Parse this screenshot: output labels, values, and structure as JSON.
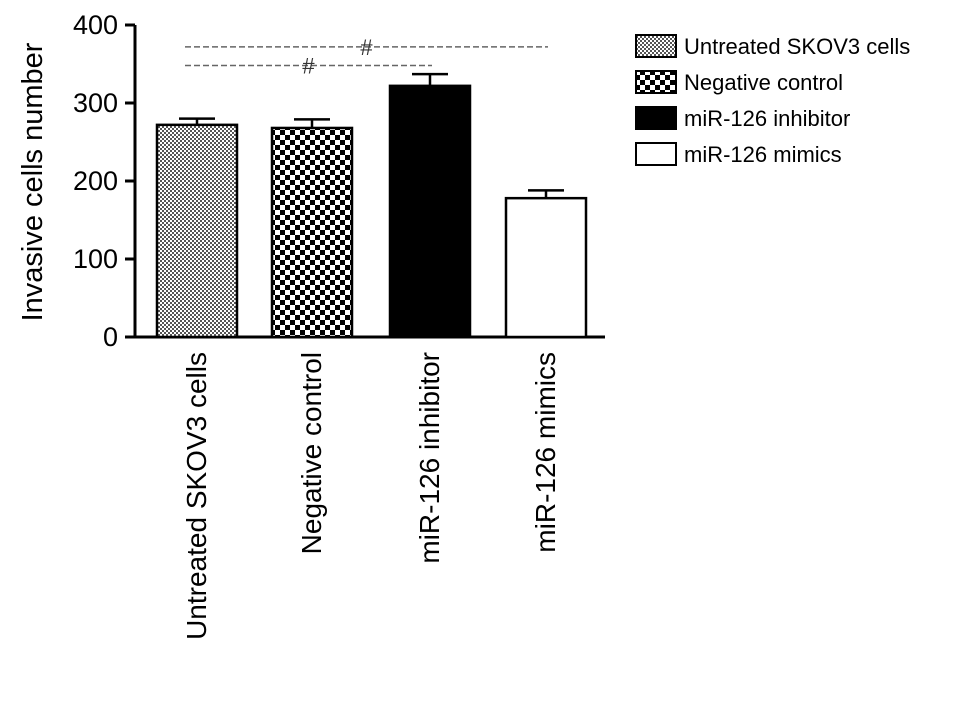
{
  "chart_data": {
    "type": "bar",
    "title": "",
    "xlabel": "",
    "ylabel": "Invasive cells number",
    "ylim": [
      0,
      400
    ],
    "yticks": [
      0,
      100,
      200,
      300,
      400
    ],
    "categories": [
      "Untreated SKOV3 cells",
      "Negative control",
      "miR-126 inhibitor",
      "miR-126 mimics"
    ],
    "values": [
      272,
      268,
      322,
      178
    ],
    "errors": [
      8,
      11,
      15,
      10
    ],
    "fills": [
      "dense-pattern",
      "checker-pattern",
      "#000000",
      "#ffffff"
    ],
    "legend": {
      "position": "right",
      "entries": [
        "Untreated SKOV3 cells",
        "Negative control",
        "miR-126 inhibitor",
        "miR-126 mimics"
      ]
    },
    "significance": [
      {
        "from": 0,
        "to": 3,
        "label": "#",
        "y": 372
      },
      {
        "from": 0,
        "to": 2,
        "label": "#",
        "y": 348
      }
    ],
    "grid": false
  }
}
